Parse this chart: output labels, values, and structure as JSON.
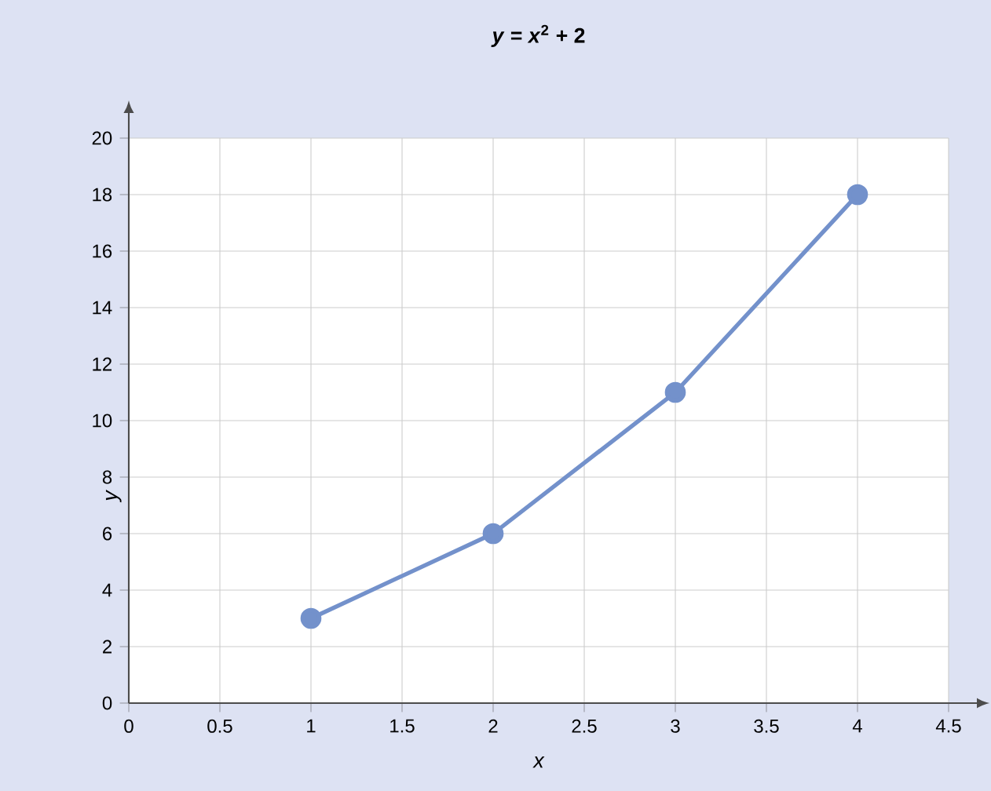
{
  "chart_data": {
    "type": "line",
    "title": "*y* = *x*$^{2}$ + 2",
    "xlabel": "x",
    "ylabel": "y",
    "x": [
      1,
      2,
      3,
      4
    ],
    "series": [
      {
        "color": "#7391cb",
        "values": [
          3,
          6,
          11,
          18
        ]
      }
    ],
    "xlim": [
      0,
      4.5
    ],
    "ylim": [
      0,
      20
    ],
    "xticks": [
      0,
      0.5,
      1,
      1.5,
      2,
      2.5,
      3,
      3.5,
      4,
      4.5
    ],
    "yticks": [
      0,
      2,
      4,
      6,
      8,
      10,
      12,
      14,
      16,
      18,
      20
    ],
    "grid": true,
    "marker": "circle",
    "line_style": "solid"
  }
}
